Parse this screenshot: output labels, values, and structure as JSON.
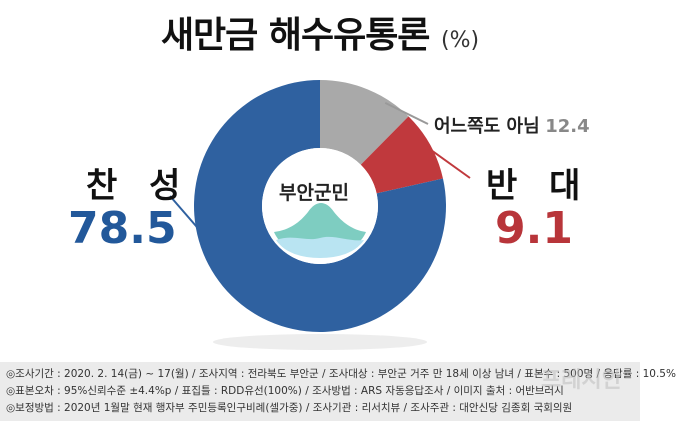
{
  "title": "새만금 해수유통론",
  "unit": "(%)",
  "center_label": "부안군민",
  "labels": {
    "agree_name": "찬 성",
    "agree_value": "78.5",
    "oppose_name": "반 대",
    "oppose_value": "9.1",
    "neutral_name": "어느쪽도 아님",
    "neutral_value": "12.4"
  },
  "colors": {
    "agree": "#2f61a0",
    "oppose": "#c0393d",
    "neutral": "#a9a9a9",
    "agree_text": "#22589a",
    "oppose_text": "#b8353a"
  },
  "chart_data": {
    "type": "pie",
    "title": "새만금 해수유통론",
    "unit": "%",
    "slices": [
      {
        "label": "찬 성",
        "value": 78.5
      },
      {
        "label": "반 대",
        "value": 9.1
      },
      {
        "label": "어느쪽도 아님",
        "value": 12.4
      }
    ]
  },
  "footer": {
    "line1": "◎조사기간 : 2020. 2. 14(금) ~ 17(월) / 조사지역 : 전라북도 부안군 / 조사대상 : 부안군 거주 만 18세 이상 남녀 / 표본수 : 500명 / 응답률 : 10.5%",
    "line2": "◎표본오차 : 95%신뢰수준 ±4.4%p / 표집틀 : RDD유선(100%) / 조사방법 : ARS 자동응답조사 / 이미지 출처 : 어반브러시",
    "line3": "◎보정방법 : 2020년 1월말 현재 행자부 주민등록인구비례(셀가중) / 조사기관 : 리서치뷰 / 조사주관 : 대안신당 김종회 국회의원"
  },
  "watermark": "프레시안"
}
